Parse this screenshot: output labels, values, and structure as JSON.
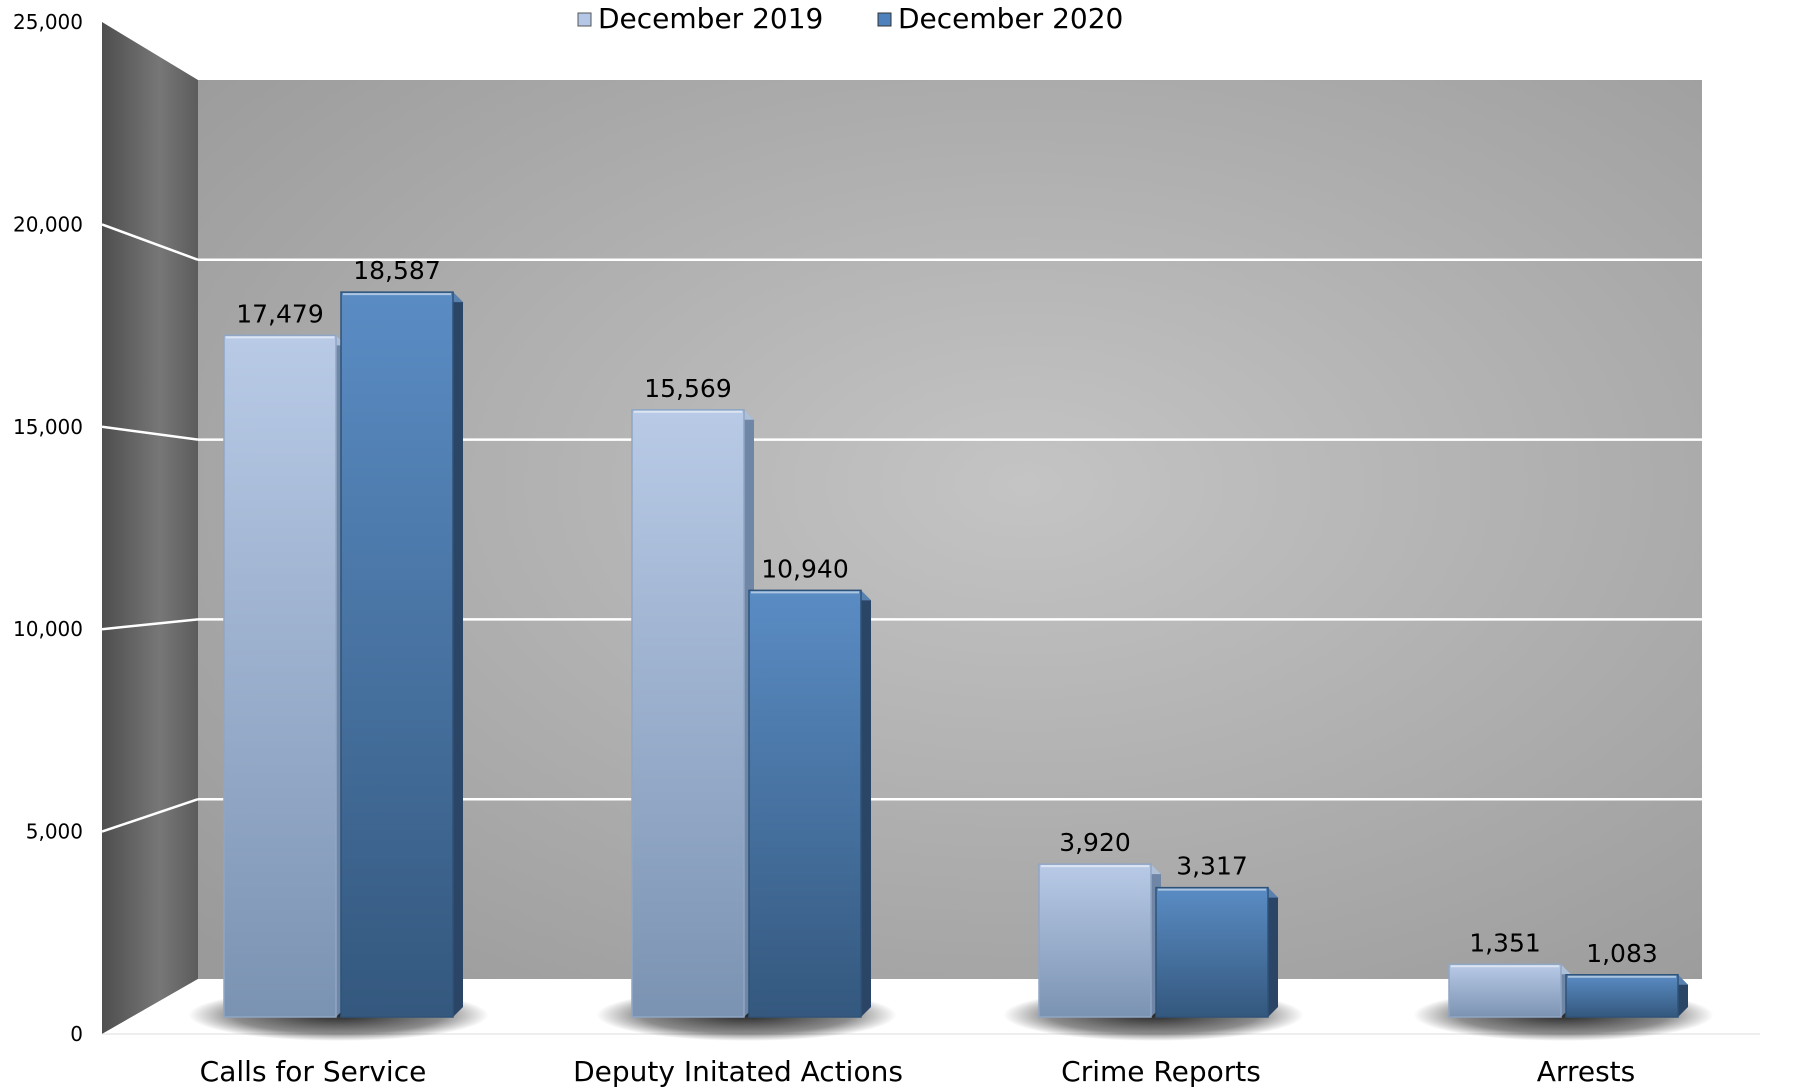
{
  "chart_data": {
    "type": "bar",
    "title": "",
    "xlabel": "",
    "ylabel": "",
    "categories": [
      "Calls for Service",
      "Deputy Initated Actions",
      "Crime Reports",
      "Arrests"
    ],
    "series": [
      {
        "name": "December 2019",
        "values": [
          17479,
          15569,
          3920,
          1351
        ],
        "labels": [
          "17,479",
          "15,569",
          "3,920",
          "1,351"
        ],
        "color": "#b4c7e7"
      },
      {
        "name": "December 2020",
        "values": [
          18587,
          10940,
          3317,
          1083
        ],
        "labels": [
          "18,587",
          "10,940",
          "3,317",
          "1,083"
        ],
        "color": "#4f81bd"
      }
    ],
    "ylim": [
      0,
      25000
    ],
    "yticks": [
      "0",
      "5,000",
      "10,000",
      "15,000",
      "20,000",
      "25,000"
    ],
    "ytick_values": [
      0,
      5000,
      10000,
      15000,
      20000,
      25000
    ],
    "grid": true,
    "legend": "top-center",
    "style": "3d-perspective-bar",
    "colors": {
      "back_wall": "#b9b9b9",
      "side_wall": "#6a6a6a",
      "gridline": "#ffffff"
    }
  }
}
